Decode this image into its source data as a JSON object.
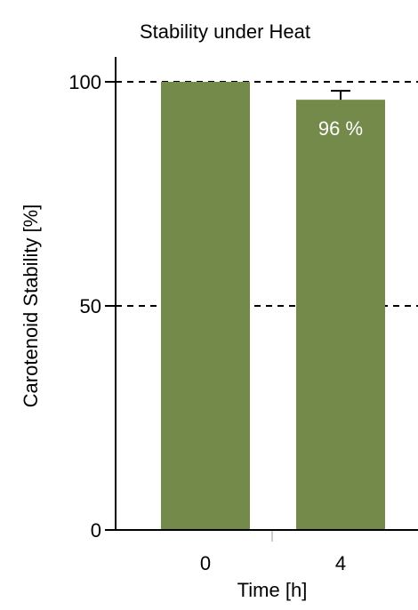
{
  "chart_data": {
    "type": "bar",
    "title": "Stability under Heat",
    "xlabel": "Time [h]",
    "ylabel": "Carotenoid Stability [%]",
    "categories": [
      "0",
      "4"
    ],
    "values": [
      100,
      96
    ],
    "error_bars": [
      null,
      2
    ],
    "data_labels": [
      "",
      "96 %"
    ],
    "ylim": [
      0,
      100
    ],
    "yticks": [
      0,
      50,
      100
    ],
    "reference_lines": [
      50,
      100
    ],
    "bar_color": "#738a4a",
    "grid": false
  }
}
